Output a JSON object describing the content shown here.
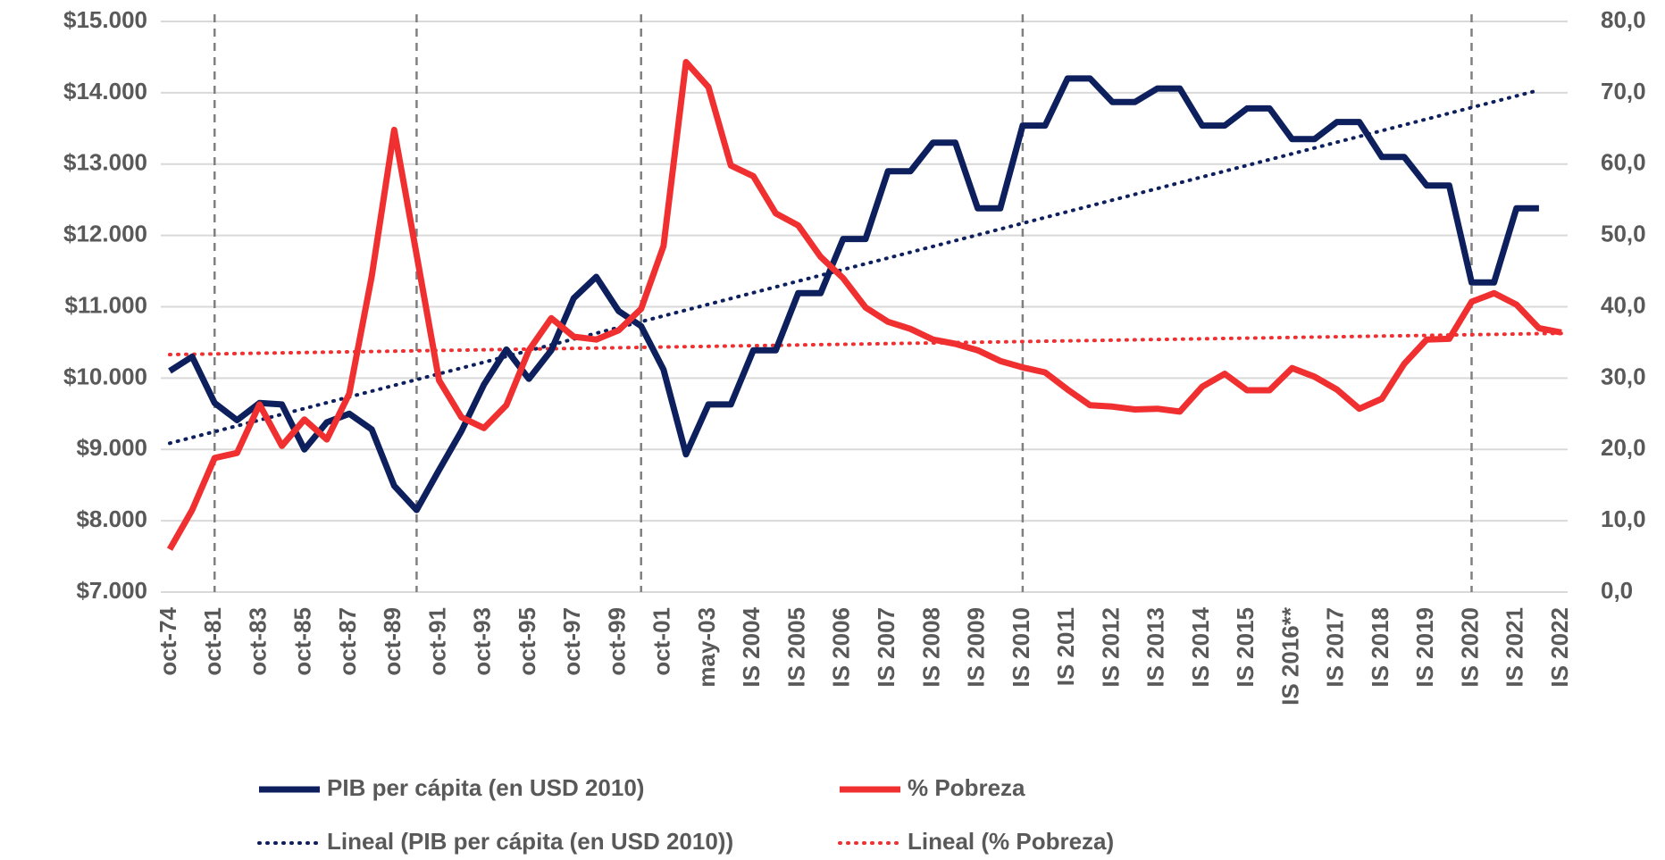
{
  "chart_data": {
    "type": "line",
    "categories": [
      "oct-74",
      null,
      "oct-81",
      null,
      "oct-83",
      null,
      "oct-85",
      null,
      "oct-87",
      null,
      "oct-89",
      null,
      "oct-91",
      null,
      "oct-93",
      null,
      "oct-95",
      null,
      "oct-97",
      null,
      "oct-99",
      null,
      "oct-01",
      null,
      "may-03",
      null,
      "IS 2004",
      null,
      "IS 2005",
      null,
      "IS 2006",
      null,
      "IS 2007",
      null,
      "IS 2008",
      null,
      "IS 2009",
      null,
      "IS 2010",
      null,
      "IS 2011",
      null,
      "IS 2012",
      null,
      "IS 2013",
      null,
      "IS 2014",
      null,
      "IS 2015",
      null,
      "IS 2016**",
      null,
      "IS 2017",
      null,
      "IS 2018",
      null,
      "IS 2019",
      null,
      "IS 2020",
      null,
      "IS 2021",
      null,
      "IS 2022"
    ],
    "series": [
      {
        "name": "PIB per cápita (en USD 2010)",
        "color": "#0d1f5c",
        "axis": "y",
        "values": [
          10100,
          10300,
          9650,
          9410,
          9650,
          9630,
          9000,
          9380,
          9500,
          9280,
          8490,
          8150,
          8710,
          9260,
          9910,
          10400,
          9990,
          10390,
          11120,
          11420,
          10940,
          10730,
          10120,
          8930,
          9630,
          9630,
          10390,
          10390,
          11190,
          11190,
          11950,
          11950,
          12900,
          12900,
          13300,
          13300,
          12380,
          12380,
          13540,
          13540,
          14200,
          14200,
          13870,
          13870,
          14060,
          14060,
          13540,
          13540,
          13780,
          13780,
          13350,
          13350,
          13590,
          13590,
          13100,
          13100,
          12700,
          12700,
          11340,
          11340,
          12380,
          12380,
          null
        ]
      },
      {
        "name": "% Pobreza",
        "color": "#f03030",
        "axis": "y2",
        "values": [
          6.0,
          11.5,
          18.8,
          19.5,
          26.3,
          20.5,
          24.2,
          21.4,
          27.8,
          44.3,
          64.8,
          47.3,
          29.7,
          24.5,
          23.0,
          26.2,
          33.9,
          38.4,
          35.8,
          35.4,
          36.7,
          39.7,
          48.5,
          74.3,
          70.8,
          59.8,
          58.3,
          53.1,
          51.4,
          47.0,
          44.0,
          39.9,
          37.9,
          36.9,
          35.4,
          34.8,
          33.9,
          32.4,
          31.5,
          30.8,
          28.4,
          26.2,
          26.0,
          25.6,
          25.7,
          25.3,
          28.8,
          30.6,
          28.3,
          28.3,
          31.4,
          30.2,
          28.4,
          25.7,
          27.1,
          32.0,
          35.4,
          35.5,
          40.7,
          41.9,
          40.3,
          37.0,
          36.4
        ]
      }
    ],
    "trendlines": [
      {
        "name": "Lineal (PIB per cápita (en USD 2010))",
        "color": "#0d1f5c",
        "of": 0
      },
      {
        "name": "Lineal (% Pobreza)",
        "color": "#f03030",
        "of": 1
      }
    ],
    "ylim": [
      7000,
      15000
    ],
    "yticks": [
      {
        "value": 7000,
        "label": "$7.000"
      },
      {
        "value": 8000,
        "label": "$8.000"
      },
      {
        "value": 9000,
        "label": "$9.000"
      },
      {
        "value": 10000,
        "label": "$10.000"
      },
      {
        "value": 11000,
        "label": "$11.000"
      },
      {
        "value": 12000,
        "label": "$12.000"
      },
      {
        "value": 13000,
        "label": "$13.000"
      },
      {
        "value": 14000,
        "label": "$14.000"
      },
      {
        "value": 15000,
        "label": "$15.000"
      }
    ],
    "y2lim": [
      0,
      80
    ],
    "y2ticks": [
      {
        "value": 0,
        "label": "0,0"
      },
      {
        "value": 10,
        "label": "10,0"
      },
      {
        "value": 20,
        "label": "20,0"
      },
      {
        "value": 30,
        "label": "30,0"
      },
      {
        "value": 40,
        "label": "40,0"
      },
      {
        "value": 50,
        "label": "50,0"
      },
      {
        "value": 60,
        "label": "60,0"
      },
      {
        "value": 70,
        "label": "70,0"
      },
      {
        "value": 80,
        "label": "80,0"
      }
    ],
    "grid": true
  }
}
